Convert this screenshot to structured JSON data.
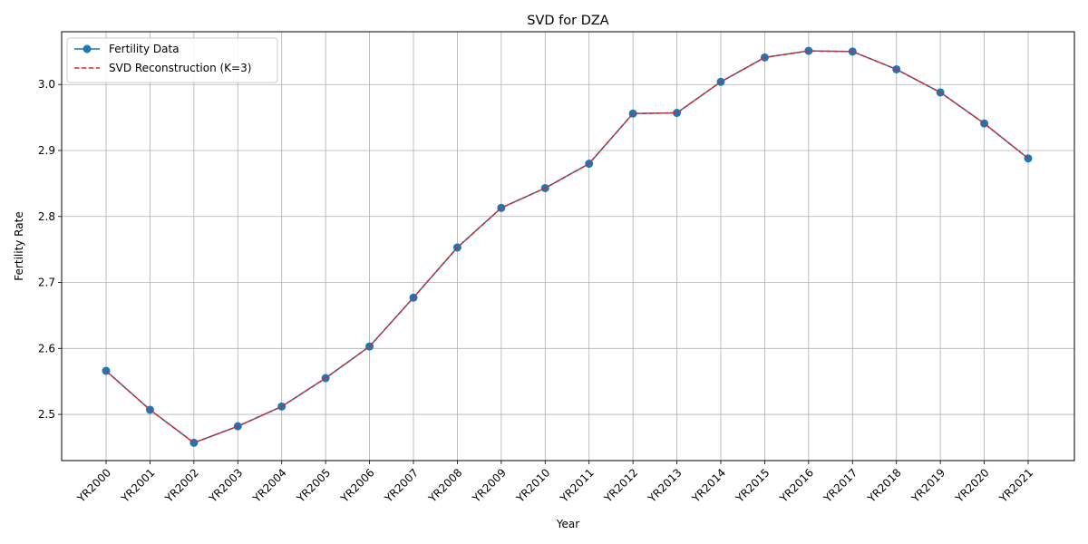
{
  "chart_data": {
    "type": "line",
    "title": "SVD for DZA",
    "xlabel": "Year",
    "ylabel": "Fertility Rate",
    "categories": [
      "YR2000",
      "YR2001",
      "YR2002",
      "YR2003",
      "YR2004",
      "YR2005",
      "YR2006",
      "YR2007",
      "YR2008",
      "YR2009",
      "YR2010",
      "YR2011",
      "YR2012",
      "YR2013",
      "YR2014",
      "YR2015",
      "YR2016",
      "YR2017",
      "YR2018",
      "YR2019",
      "YR2020",
      "YR2021"
    ],
    "ylim": [
      2.43,
      3.08
    ],
    "yticks": [
      2.5,
      2.6,
      2.7,
      2.8,
      2.9,
      3.0
    ],
    "ytick_labels": [
      "2.5",
      "2.6",
      "2.7",
      "2.8",
      "2.9",
      "3.0"
    ],
    "grid": true,
    "legend_position": "top-left",
    "series": [
      {
        "name": "Fertility Data",
        "style": "solid line with circle markers",
        "color": "#1f77b4",
        "values": [
          2.566,
          2.507,
          2.457,
          2.482,
          2.512,
          2.555,
          2.603,
          2.677,
          2.753,
          2.813,
          2.843,
          2.88,
          2.956,
          2.957,
          3.004,
          3.041,
          3.051,
          3.05,
          3.023,
          2.988,
          2.941,
          2.888
        ]
      },
      {
        "name": "SVD Reconstruction (K=3)",
        "style": "dashed line",
        "color": "#d62728",
        "values": [
          2.566,
          2.507,
          2.457,
          2.482,
          2.512,
          2.555,
          2.603,
          2.677,
          2.753,
          2.813,
          2.843,
          2.88,
          2.956,
          2.957,
          3.004,
          3.041,
          3.051,
          3.05,
          3.023,
          2.988,
          2.941,
          2.888
        ]
      }
    ]
  }
}
